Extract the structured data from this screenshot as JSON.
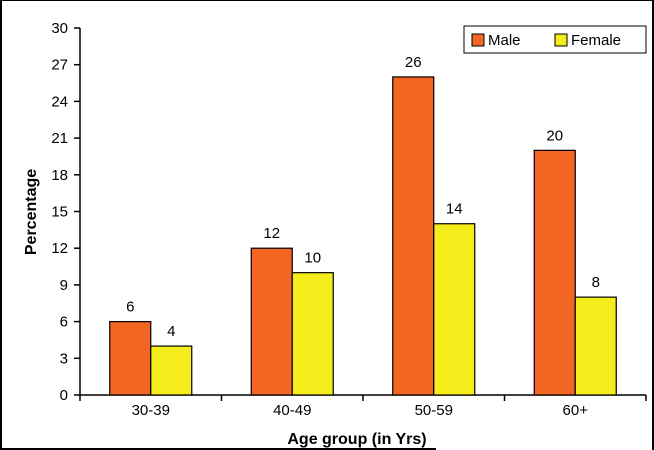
{
  "chart_data": {
    "type": "bar",
    "title": "",
    "xlabel": "Age group (in Yrs)",
    "ylabel": "Percentage",
    "ylim": [
      0,
      30
    ],
    "yticks": [
      0,
      3,
      6,
      9,
      12,
      15,
      18,
      21,
      24,
      27,
      30
    ],
    "categories": [
      "30-39",
      "40-49",
      "50-59",
      "60+"
    ],
    "series": [
      {
        "name": "Male",
        "values": [
          6,
          12,
          26,
          20
        ],
        "color": "#f26522"
      },
      {
        "name": "Female",
        "values": [
          4,
          10,
          14,
          8
        ],
        "color": "#f5ec1c"
      }
    ],
    "legend_position": "top-right",
    "grid": false,
    "data_labels": true
  }
}
